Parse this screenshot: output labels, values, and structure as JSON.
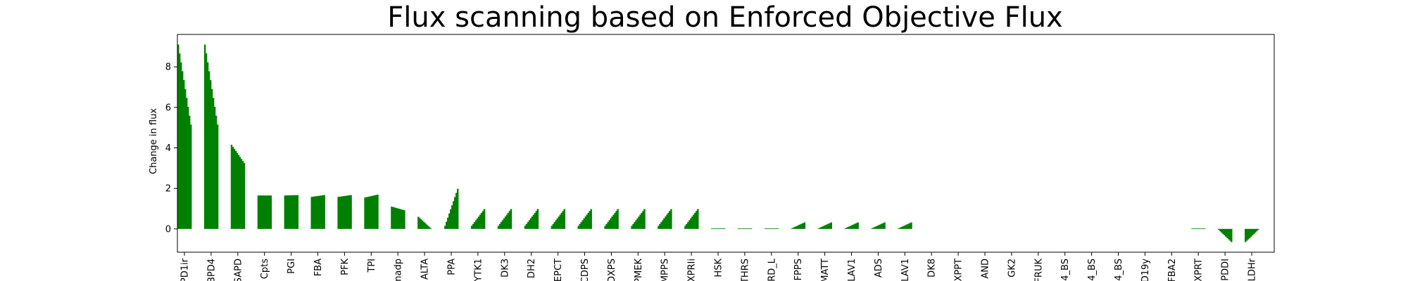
{
  "chart_data": {
    "type": "bar",
    "title": "Flux scanning based on Enforced Objective Flux",
    "xlabel": "",
    "ylabel": "Change in flux",
    "ylim": [
      -1.15,
      9.6
    ],
    "yticks": [
      0,
      2,
      4,
      6,
      8
    ],
    "bar_color": "#008000",
    "categories": [
      "PD1ir",
      "BPD4",
      "SAPD",
      "Cpts",
      "PGI",
      "FBA",
      "PFK",
      "TPI",
      "nadp",
      "ALTA",
      "PPA",
      "YTK1",
      "DK3",
      "DH2",
      "EPCT",
      "CDPS",
      "DXPS",
      "PMEK",
      "MPPS",
      "XPRIi",
      "HSK",
      "THRS",
      "RD_L",
      "FPPS",
      "MATT",
      "LAV1",
      "ADS",
      "LAV1",
      "DK8",
      "XPPT",
      "AND",
      "GK2",
      "FRUK",
      "4_BS",
      "4_BS",
      "4_BS",
      "D19y",
      "FBA2",
      "XPRT",
      "PDDI",
      "LDHr"
    ],
    "groups": [
      {
        "start": 9.1,
        "end": 5.15
      },
      {
        "start": 9.1,
        "end": 5.15
      },
      {
        "start": 4.15,
        "end": 3.25
      },
      {
        "start": 1.65,
        "end": 1.65
      },
      {
        "start": 1.65,
        "end": 1.67
      },
      {
        "start": 1.58,
        "end": 1.67
      },
      {
        "start": 1.58,
        "end": 1.67
      },
      {
        "start": 1.55,
        "end": 1.69
      },
      {
        "start": 1.1,
        "end": 0.92
      },
      {
        "start": 0.6,
        "end": 0.02
      },
      {
        "start": 0.15,
        "end": 1.98
      },
      {
        "start": 0.15,
        "end": 0.98
      },
      {
        "start": 0.15,
        "end": 0.98
      },
      {
        "start": 0.15,
        "end": 0.98
      },
      {
        "start": 0.15,
        "end": 0.98
      },
      {
        "start": 0.15,
        "end": 0.98
      },
      {
        "start": 0.15,
        "end": 0.98
      },
      {
        "start": 0.15,
        "end": 0.98
      },
      {
        "start": 0.15,
        "end": 0.98
      },
      {
        "start": 0.15,
        "end": 0.98
      },
      {
        "start": 0.02,
        "end": 0.02
      },
      {
        "start": 0.02,
        "end": 0.02
      },
      {
        "start": 0.02,
        "end": 0.02
      },
      {
        "start": 0.03,
        "end": 0.32
      },
      {
        "start": 0.03,
        "end": 0.32
      },
      {
        "start": 0.03,
        "end": 0.32
      },
      {
        "start": 0.03,
        "end": 0.32
      },
      {
        "start": 0.03,
        "end": 0.32
      },
      {
        "start": 0,
        "end": 0
      },
      {
        "start": 0,
        "end": 0
      },
      {
        "start": 0,
        "end": 0
      },
      {
        "start": 0,
        "end": 0
      },
      {
        "start": 0,
        "end": 0
      },
      {
        "start": 0,
        "end": 0
      },
      {
        "start": 0,
        "end": 0
      },
      {
        "start": 0,
        "end": 0
      },
      {
        "start": 0,
        "end": 0
      },
      {
        "start": 0,
        "end": 0
      },
      {
        "start": 0.02,
        "end": 0.02
      },
      {
        "start": -0.05,
        "end": -0.65
      },
      {
        "start": -0.65,
        "end": -0.05
      }
    ],
    "grid": false,
    "legend": "none"
  }
}
